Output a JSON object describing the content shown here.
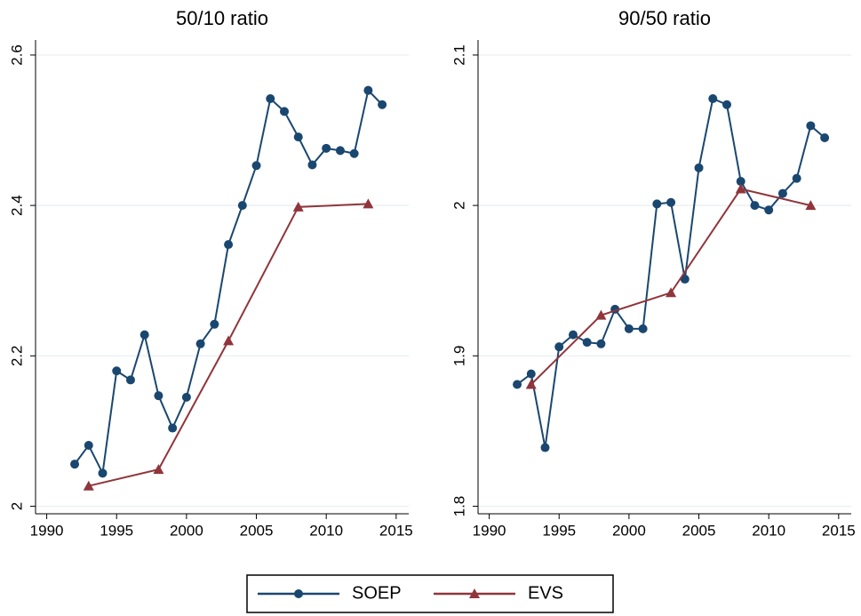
{
  "chart_data": [
    {
      "type": "line",
      "title": "50/10 ratio",
      "series": [
        {
          "name": "SOEP",
          "color": "#1a476f",
          "marker": "circle",
          "x": [
            1992,
            1993,
            1994,
            1995,
            1996,
            1997,
            1998,
            1999,
            2000,
            2001,
            2002,
            2003,
            2004,
            2005,
            2006,
            2007,
            2008,
            2009,
            2010,
            2011,
            2012,
            2013,
            2014
          ],
          "values": [
            2.056,
            2.081,
            2.044,
            2.18,
            2.168,
            2.228,
            2.147,
            2.104,
            2.145,
            2.216,
            2.242,
            2.348,
            2.4,
            2.453,
            2.542,
            2.525,
            2.491,
            2.454,
            2.476,
            2.473,
            2.469,
            2.553,
            2.534
          ]
        },
        {
          "name": "EVS",
          "color": "#90353b",
          "marker": "triangle",
          "x": [
            1993,
            1998,
            2003,
            2008,
            2013
          ],
          "values": [
            2.027,
            2.049,
            2.22,
            2.398,
            2.402
          ]
        }
      ],
      "xlim": [
        1989.2,
        2015.9
      ],
      "xticks": [
        1990,
        1995,
        2000,
        2005,
        2010,
        2015
      ],
      "ylim": [
        1.99,
        2.62
      ],
      "yticks": [
        2,
        2.2,
        2.4,
        2.6
      ],
      "grid": true
    },
    {
      "type": "line",
      "title": "90/50 ratio",
      "series": [
        {
          "name": "SOEP",
          "color": "#1a476f",
          "marker": "circle",
          "x": [
            1992,
            1993,
            1994,
            1995,
            1996,
            1997,
            1998,
            1999,
            2000,
            2001,
            2002,
            2003,
            2004,
            2005,
            2006,
            2007,
            2008,
            2009,
            2010,
            2011,
            2012,
            2013,
            2014
          ],
          "values": [
            1.881,
            1.888,
            1.839,
            1.906,
            1.914,
            1.909,
            1.908,
            1.931,
            1.918,
            1.918,
            2.001,
            2.002,
            1.951,
            2.025,
            2.071,
            2.067,
            2.016,
            2.0,
            1.997,
            2.008,
            2.018,
            2.053,
            2.045
          ]
        },
        {
          "name": "EVS",
          "color": "#90353b",
          "marker": "triangle",
          "x": [
            1993,
            1998,
            2003,
            2008,
            2013
          ],
          "values": [
            1.881,
            1.927,
            1.942,
            2.011,
            2.0
          ]
        }
      ],
      "xlim": [
        1989.2,
        2015.9
      ],
      "xticks": [
        1990,
        1995,
        2000,
        2005,
        2010,
        2015
      ],
      "ylim": [
        1.795,
        2.11
      ],
      "yticks": [
        1.8,
        1.9,
        2,
        2.1
      ],
      "grid": true
    }
  ]
}
